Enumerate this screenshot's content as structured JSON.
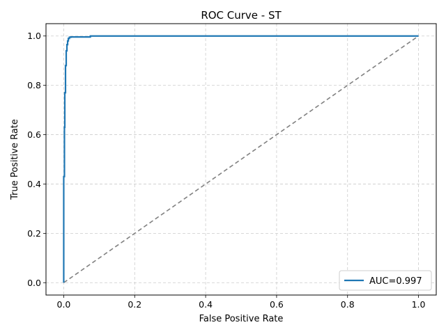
{
  "chart_data": {
    "type": "line",
    "title": "ROC Curve - ST",
    "xlabel": "False Positive Rate",
    "ylabel": "True Positive Rate",
    "xlim": [
      -0.05,
      1.05
    ],
    "ylim": [
      -0.05,
      1.05
    ],
    "xticks": [
      0.0,
      0.2,
      0.4,
      0.6,
      0.8,
      1.0
    ],
    "xtick_labels": [
      "0.0",
      "0.2",
      "0.4",
      "0.6",
      "0.8",
      "1.0"
    ],
    "yticks": [
      0.0,
      0.2,
      0.4,
      0.6,
      0.8,
      1.0
    ],
    "ytick_labels": [
      "0.0",
      "0.2",
      "0.4",
      "0.6",
      "0.8",
      "1.0"
    ],
    "grid": true,
    "legend_position": "lower-right",
    "series": [
      {
        "name": "AUC=0.997",
        "color": "#1f77b4",
        "style": "solid",
        "x": [
          0.0,
          0.0,
          0.002,
          0.002,
          0.003,
          0.003,
          0.005,
          0.005,
          0.007,
          0.007,
          0.009,
          0.009,
          0.011,
          0.011,
          0.013,
          0.013,
          0.016,
          0.016,
          0.02,
          0.02,
          0.075,
          0.075,
          1.0
        ],
        "y": [
          0.0,
          0.43,
          0.43,
          0.63,
          0.63,
          0.77,
          0.77,
          0.88,
          0.88,
          0.94,
          0.94,
          0.965,
          0.965,
          0.98,
          0.98,
          0.99,
          0.99,
          0.995,
          0.995,
          0.996,
          0.996,
          1.0,
          1.0
        ]
      },
      {
        "color": "#808080",
        "style": "dashed",
        "x": [
          0.0,
          1.0
        ],
        "y": [
          0.0,
          1.0
        ]
      }
    ]
  }
}
